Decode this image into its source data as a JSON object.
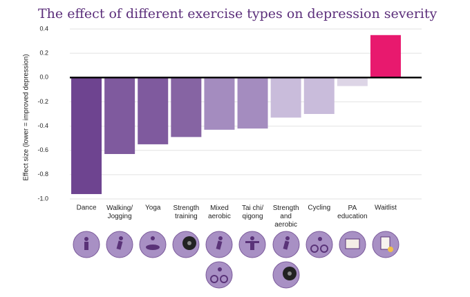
{
  "chart_data": {
    "type": "bar",
    "title": "The effect of different exercise types on depression severity",
    "y_label": "Effect size (lower = improved depression)",
    "categories": [
      "Dance",
      "Walking/\nJogging",
      "Yoga",
      "Strength\ntraining",
      "Mixed\naerobic",
      "Tai chi/\nqigong",
      "Strength\nand\naerobic",
      "Cycling",
      "PA\neducation",
      "Waitlist"
    ],
    "values": [
      -0.96,
      -0.63,
      -0.55,
      -0.49,
      -0.43,
      -0.42,
      -0.33,
      -0.3,
      -0.07,
      0.35
    ],
    "colors": [
      "#6e4490",
      "#7f5a9e",
      "#7f5a9e",
      "#8664a3",
      "#a48cbf",
      "#a48cbf",
      "#c9bcdb",
      "#c9bcdb",
      "#ddd5e6",
      "#e8196e"
    ],
    "ylim": [
      -1.0,
      0.4
    ],
    "yticks": [
      0.4,
      0.2,
      {
        "value": 0,
        "label": "0.0"
      },
      -0.2,
      -0.4,
      -0.6,
      -0.8,
      {
        "value": -1,
        "label": "-1.0"
      }
    ],
    "grid": true
  }
}
